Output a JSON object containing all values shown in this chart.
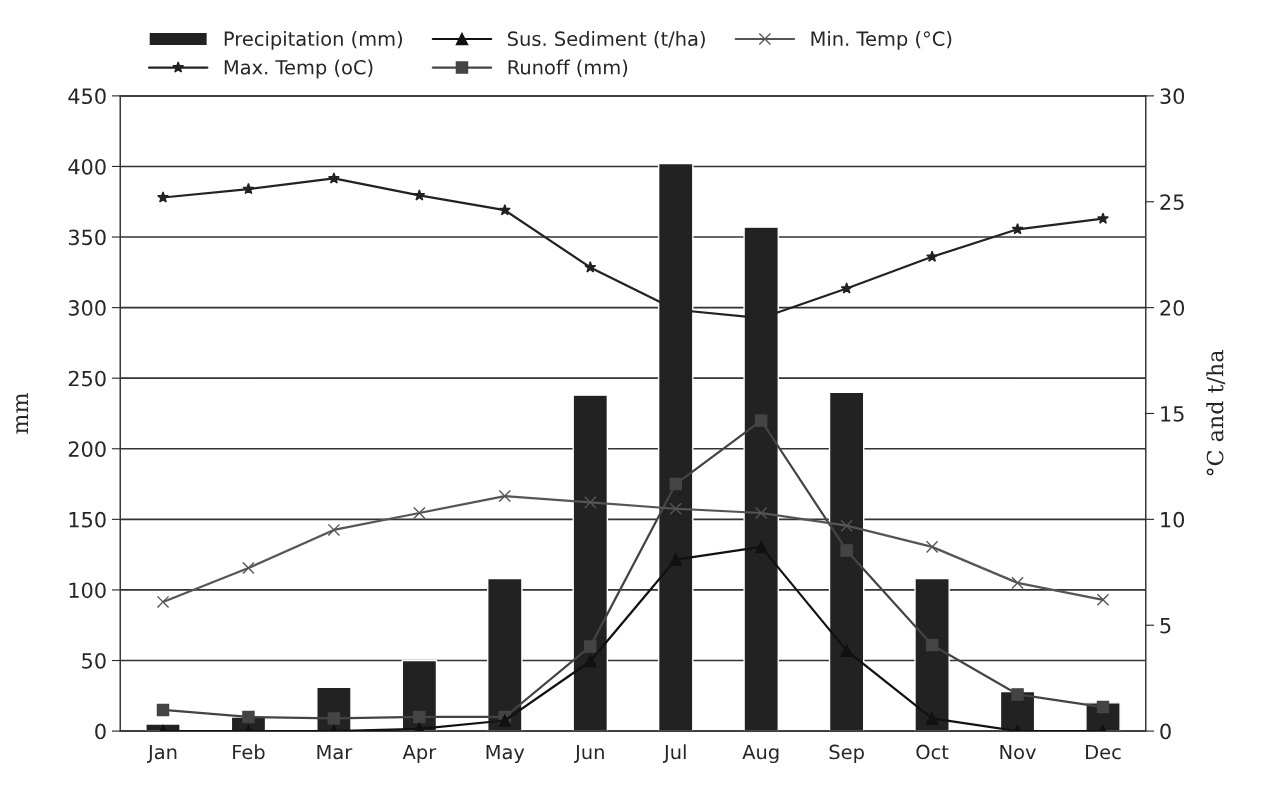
{
  "chart_data": {
    "type": "bar",
    "categories": [
      "Jan",
      "Feb",
      "Mar",
      "Apr",
      "May",
      "Jun",
      "Jul",
      "Aug",
      "Sep",
      "Oct",
      "Nov",
      "Dec"
    ],
    "ylabel": "mm",
    "y2label": "°C and t/ha",
    "ylim": [
      0,
      450
    ],
    "yticks": [
      0,
      50,
      100,
      150,
      200,
      250,
      300,
      350,
      400,
      450
    ],
    "y2lim": [
      0,
      30
    ],
    "y2ticks": [
      0,
      5,
      10,
      15,
      20,
      25,
      30
    ],
    "grid": "y",
    "legend": "top",
    "series": [
      {
        "name": "Precipitation (mm)",
        "color": "#222222",
        "values": [
          5,
          10,
          31,
          50,
          108,
          238,
          402,
          357,
          240,
          108,
          28,
          20
        ]
      },
      {
        "name": "Sus. Sediment (t/ha)",
        "type": "line",
        "axis": "y2",
        "marker": "triangle",
        "color": "#111111",
        "values": [
          0,
          0,
          0,
          0.1,
          0.5,
          3.3,
          8.1,
          8.7,
          3.8,
          0.6,
          0,
          0
        ]
      },
      {
        "name": "Min. Temp (°C)",
        "type": "line",
        "axis": "y2",
        "marker": "cross",
        "color": "#555555",
        "values": [
          6.1,
          7.7,
          9.5,
          10.3,
          11.1,
          10.8,
          10.5,
          10.3,
          9.7,
          8.7,
          7.0,
          6.2
        ]
      },
      {
        "name": "Max. Temp (oC)",
        "type": "line",
        "axis": "y2",
        "marker": "star",
        "color": "#222222",
        "values": [
          25.2,
          25.6,
          26.1,
          25.3,
          24.6,
          21.9,
          19.9,
          19.5,
          20.9,
          22.4,
          23.7,
          24.2
        ]
      },
      {
        "name": "Runoff (mm)",
        "type": "line",
        "marker": "square",
        "color": "#444444",
        "values": [
          15,
          10,
          9,
          10,
          10,
          60,
          175,
          220,
          128,
          61,
          26,
          17
        ]
      }
    ]
  }
}
